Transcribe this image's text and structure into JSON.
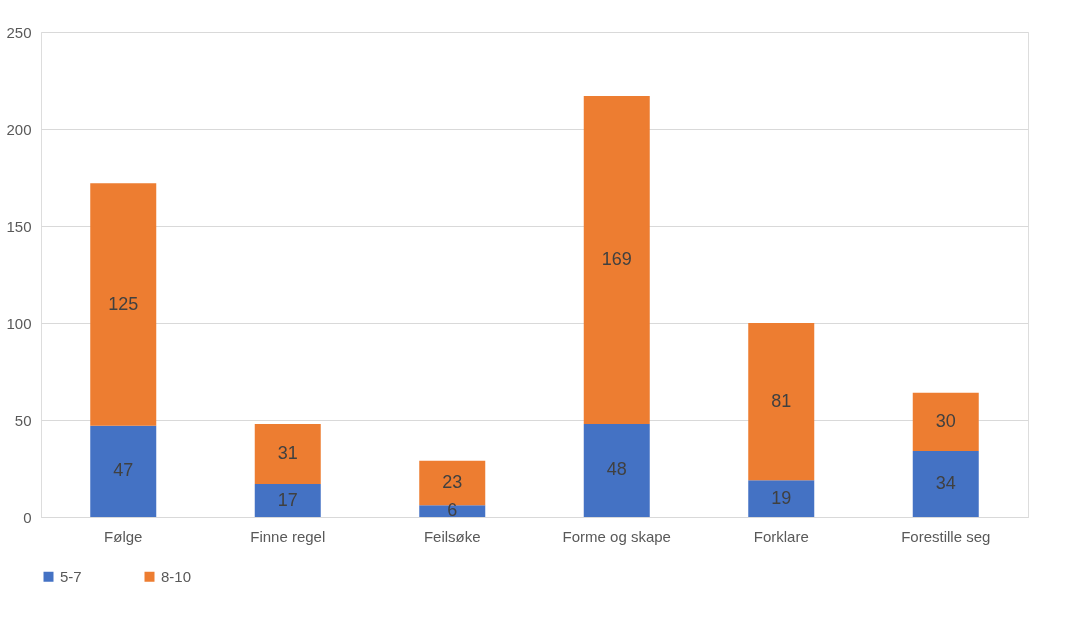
{
  "chart_data": {
    "type": "bar",
    "stacked": true,
    "categories": [
      "Følge",
      "Finne regel",
      "Feilsøke",
      "Forme og skape",
      "Forklare",
      "Forestille seg"
    ],
    "series": [
      {
        "name": "5-7",
        "color": "#4472c4",
        "values": [
          47,
          17,
          6,
          48,
          19,
          34
        ]
      },
      {
        "name": "8-10",
        "color": "#ed7d31",
        "values": [
          125,
          31,
          23,
          169,
          81,
          30
        ]
      }
    ],
    "ylim": [
      0,
      250
    ],
    "yticks": [
      0,
      50,
      100,
      150,
      200,
      250
    ],
    "grid": "y",
    "legend": "bottom",
    "data_labels": true
  }
}
